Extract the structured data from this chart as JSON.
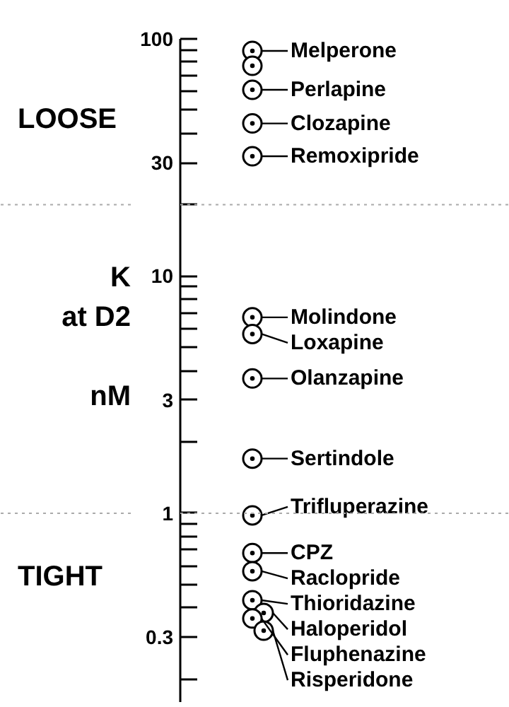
{
  "chart_data": {
    "type": "scatter",
    "ylabel": "K\nat D2\n\nnM",
    "log": "y",
    "ylim": [
      0.16,
      100
    ],
    "yticks": [
      {
        "value": 0.2,
        "label": null
      },
      0.3,
      {
        "value": 0.4,
        "label": null
      },
      {
        "value": 0.5,
        "label": null
      },
      {
        "value": 0.6,
        "label": null
      },
      {
        "value": 0.7,
        "label": null
      },
      {
        "value": 0.8,
        "label": null
      },
      {
        "value": 0.9,
        "label": null
      },
      1,
      {
        "value": 2,
        "label": null
      },
      3,
      {
        "value": 4,
        "label": null
      },
      {
        "value": 5,
        "label": null
      },
      {
        "value": 6,
        "label": null
      },
      {
        "value": 7,
        "label": null
      },
      {
        "value": 8,
        "label": null
      },
      {
        "value": 9,
        "label": null
      },
      10,
      {
        "value": 20,
        "label": null
      },
      30,
      {
        "value": 40,
        "label": null
      },
      {
        "value": 50,
        "label": null
      },
      {
        "value": 60,
        "label": null
      },
      {
        "value": 70,
        "label": null
      },
      {
        "value": 80,
        "label": null
      },
      {
        "value": 90,
        "label": null
      },
      100
    ],
    "categories": [
      null
    ],
    "tick_labels": "y",
    "marker": "circle",
    "grid": false,
    "legend": "right",
    "ref_lines": [
      {
        "axis": "y",
        "value": 20,
        "color": "#aaaaaa",
        "line_style": "dotted"
      },
      {
        "axis": "y",
        "value": 1,
        "color": "#aaaaaa",
        "line_style": "dotted"
      }
    ],
    "annotations": [
      "LOOSE",
      "TIGHT"
    ],
    "series": [
      {
        "name": "Melperone",
        "color": "#000000",
        "values": [
          89
        ]
      },
      {
        "color": "#000000",
        "values": [
          77
        ]
      },
      {
        "name": "Perlapine",
        "color": "#000000",
        "values": [
          61
        ]
      },
      {
        "name": "Clozapine",
        "color": "#000000",
        "values": [
          44
        ]
      },
      {
        "name": "Remoxipride",
        "color": "#000000",
        "values": [
          32
        ]
      },
      {
        "name": "Molindone",
        "color": "#000000",
        "values": [
          6.7
        ]
      },
      {
        "name": "Loxapine",
        "color": "#000000",
        "values": [
          5.7
        ]
      },
      {
        "name": "Olanzapine",
        "color": "#000000",
        "values": [
          3.7
        ]
      },
      {
        "name": "Sertindole",
        "color": "#000000",
        "values": [
          1.7
        ]
      },
      {
        "name": "Trifluperazine",
        "color": "#000000",
        "values": [
          0.98
        ]
      },
      {
        "name": "CPZ",
        "color": "#000000",
        "values": [
          0.68
        ]
      },
      {
        "name": "Raclopride",
        "color": "#000000",
        "values": [
          0.57
        ]
      },
      {
        "name": "Thioridazine",
        "color": "#000000",
        "values": [
          0.43
        ]
      },
      {
        "name": "Haloperidol",
        "color": "#000000",
        "values": [
          0.38
        ]
      },
      {
        "name": "Fluphenazine",
        "color": "#000000",
        "values": [
          0.36
        ]
      },
      {
        "name": "Risperidone",
        "color": "#000000",
        "values": [
          0.32
        ]
      }
    ]
  }
}
